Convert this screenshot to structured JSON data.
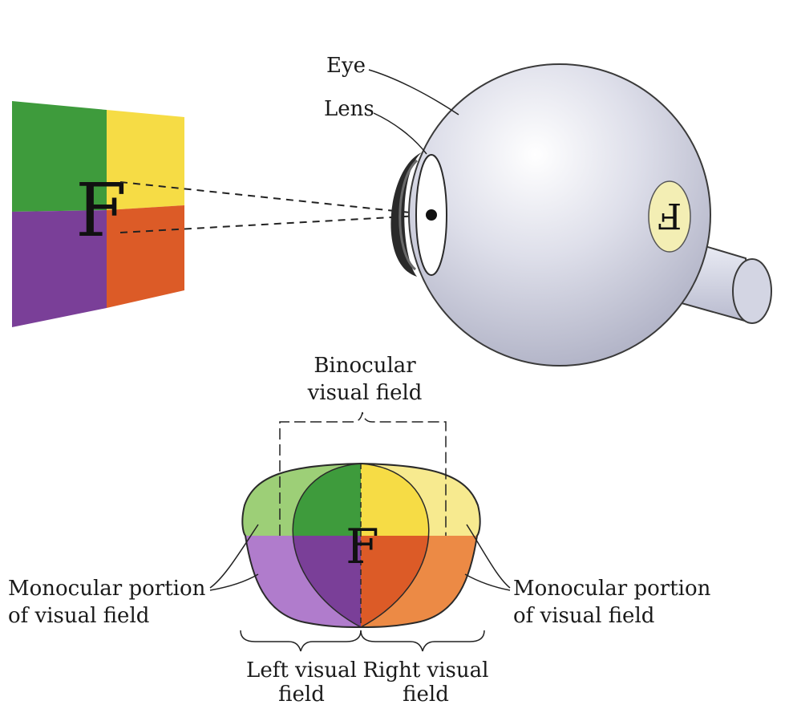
{
  "labels": {
    "eye": "Eye",
    "lens": "Lens",
    "binocular_line1": "Binocular",
    "binocular_line2": "visual field",
    "mono_left_line1": "Monocular portion",
    "mono_left_line2": "of visual field",
    "mono_right_line1": "Monocular portion",
    "mono_right_line2": "of visual field",
    "left_field_line1": "Left visual",
    "left_field_line2": "field",
    "right_field_line1": "Right visual",
    "right_field_line2": "field"
  },
  "glyphs": {
    "object_letter": "F",
    "retina_letter": "F",
    "field_letter": "F"
  },
  "colors": {
    "green": "#3e9b3c",
    "yellow": "#f6dc45",
    "purple": "#7a3f98",
    "orange": "#dc5b27",
    "light_green": "#9dcf77",
    "light_yellow": "#f7ea8f",
    "light_purple": "#b07ccc",
    "light_orange": "#ec8a45",
    "eyeball": "#dedfea",
    "retina_spot": "#f3eeb4"
  }
}
